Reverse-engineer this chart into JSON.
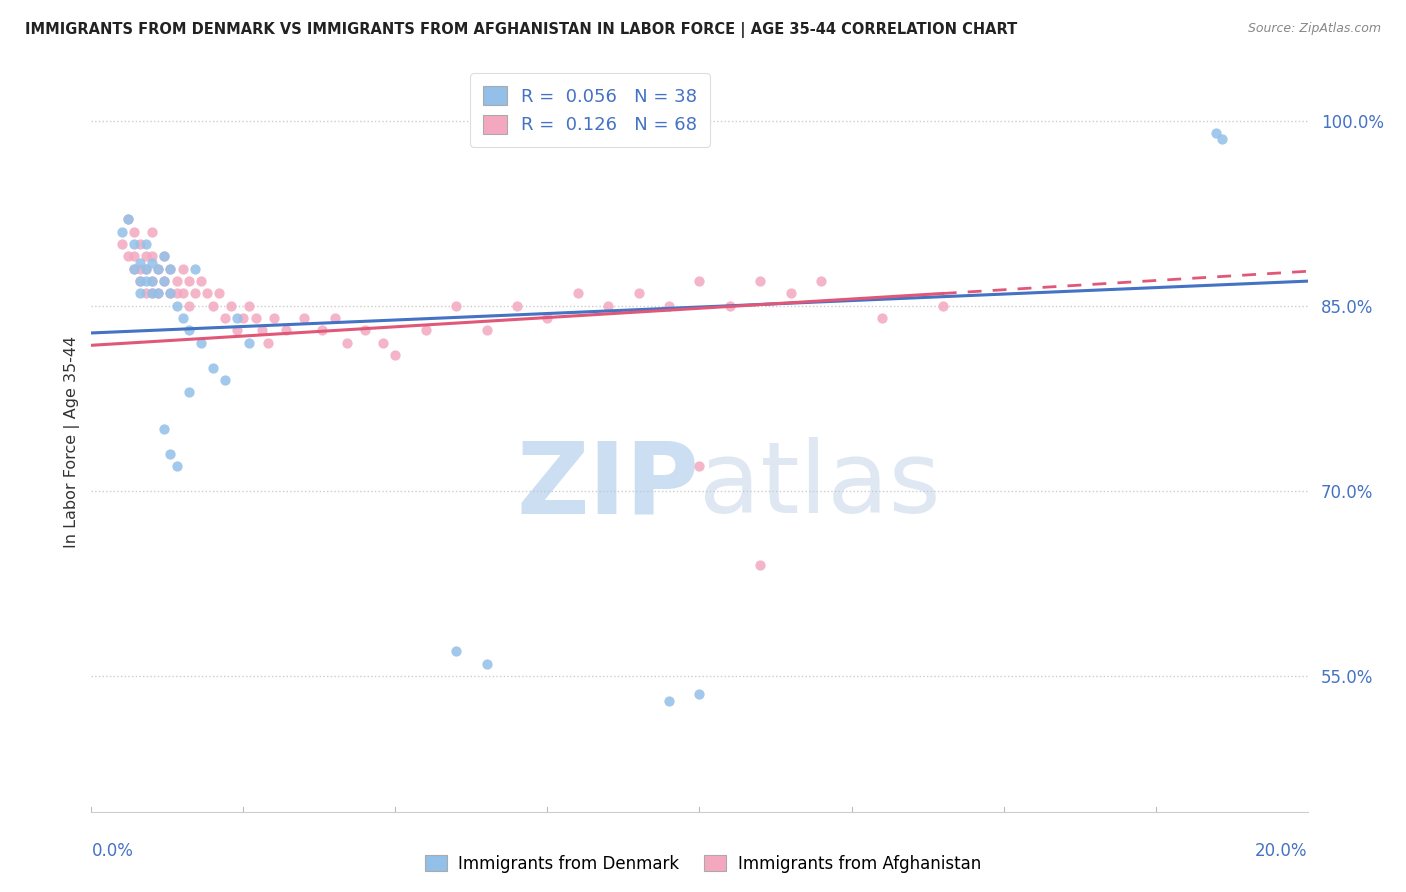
{
  "title": "IMMIGRANTS FROM DENMARK VS IMMIGRANTS FROM AFGHANISTAN IN LABOR FORCE | AGE 35-44 CORRELATION CHART",
  "source": "Source: ZipAtlas.com",
  "ylabel": "In Labor Force | Age 35-44",
  "ytick_labels": [
    "55.0%",
    "70.0%",
    "85.0%",
    "100.0%"
  ],
  "ytick_vals": [
    0.55,
    0.7,
    0.85,
    1.0
  ],
  "xlim": [
    0.0,
    0.2
  ],
  "ylim": [
    0.44,
    1.04
  ],
  "denmark_color": "#92c0e8",
  "afghanistan_color": "#f4a8c0",
  "denmark_trend_color": "#4472c4",
  "afghanistan_trend_color": "#e05878",
  "tick_color": "#4472c4",
  "denmark_R": 0.056,
  "denmark_N": 38,
  "afghanistan_R": 0.126,
  "afghanistan_N": 68,
  "watermark_zip": "ZIP",
  "watermark_atlas": "atlas",
  "watermark_zip_color": "#aac8e8",
  "watermark_atlas_color": "#b8cce4",
  "background_color": "#ffffff",
  "dashed_line_color": "#cccccc",
  "denmark_scatter_x": [
    0.005,
    0.006,
    0.007,
    0.007,
    0.008,
    0.008,
    0.008,
    0.009,
    0.009,
    0.009,
    0.01,
    0.01,
    0.01,
    0.011,
    0.011,
    0.012,
    0.012,
    0.013,
    0.013,
    0.014,
    0.015,
    0.016,
    0.017,
    0.018,
    0.02,
    0.022,
    0.024,
    0.026,
    0.012,
    0.013,
    0.014,
    0.016,
    0.06,
    0.065,
    0.095,
    0.1,
    0.185,
    0.186
  ],
  "denmark_scatter_y": [
    0.91,
    0.92,
    0.9,
    0.88,
    0.87,
    0.86,
    0.885,
    0.9,
    0.88,
    0.87,
    0.86,
    0.885,
    0.87,
    0.86,
    0.88,
    0.89,
    0.87,
    0.88,
    0.86,
    0.85,
    0.84,
    0.83,
    0.88,
    0.82,
    0.8,
    0.79,
    0.84,
    0.82,
    0.75,
    0.73,
    0.72,
    0.78,
    0.57,
    0.56,
    0.53,
    0.535,
    0.99,
    0.985
  ],
  "afghanistan_scatter_x": [
    0.005,
    0.006,
    0.006,
    0.007,
    0.007,
    0.007,
    0.008,
    0.008,
    0.008,
    0.009,
    0.009,
    0.009,
    0.01,
    0.01,
    0.01,
    0.01,
    0.011,
    0.011,
    0.012,
    0.012,
    0.013,
    0.013,
    0.014,
    0.014,
    0.015,
    0.015,
    0.016,
    0.016,
    0.017,
    0.018,
    0.019,
    0.02,
    0.021,
    0.022,
    0.023,
    0.024,
    0.025,
    0.026,
    0.027,
    0.028,
    0.029,
    0.03,
    0.032,
    0.035,
    0.038,
    0.04,
    0.042,
    0.045,
    0.048,
    0.05,
    0.055,
    0.06,
    0.065,
    0.07,
    0.075,
    0.08,
    0.085,
    0.09,
    0.095,
    0.1,
    0.105,
    0.11,
    0.115,
    0.12,
    0.13,
    0.14,
    0.1,
    0.11
  ],
  "afghanistan_scatter_y": [
    0.9,
    0.92,
    0.89,
    0.91,
    0.89,
    0.88,
    0.9,
    0.88,
    0.87,
    0.89,
    0.88,
    0.86,
    0.91,
    0.89,
    0.87,
    0.86,
    0.88,
    0.86,
    0.89,
    0.87,
    0.88,
    0.86,
    0.87,
    0.86,
    0.88,
    0.86,
    0.87,
    0.85,
    0.86,
    0.87,
    0.86,
    0.85,
    0.86,
    0.84,
    0.85,
    0.83,
    0.84,
    0.85,
    0.84,
    0.83,
    0.82,
    0.84,
    0.83,
    0.84,
    0.83,
    0.84,
    0.82,
    0.83,
    0.82,
    0.81,
    0.83,
    0.85,
    0.83,
    0.85,
    0.84,
    0.86,
    0.85,
    0.86,
    0.85,
    0.87,
    0.85,
    0.87,
    0.86,
    0.87,
    0.84,
    0.85,
    0.72,
    0.64
  ],
  "legend_R_N_color": "#4472c4"
}
